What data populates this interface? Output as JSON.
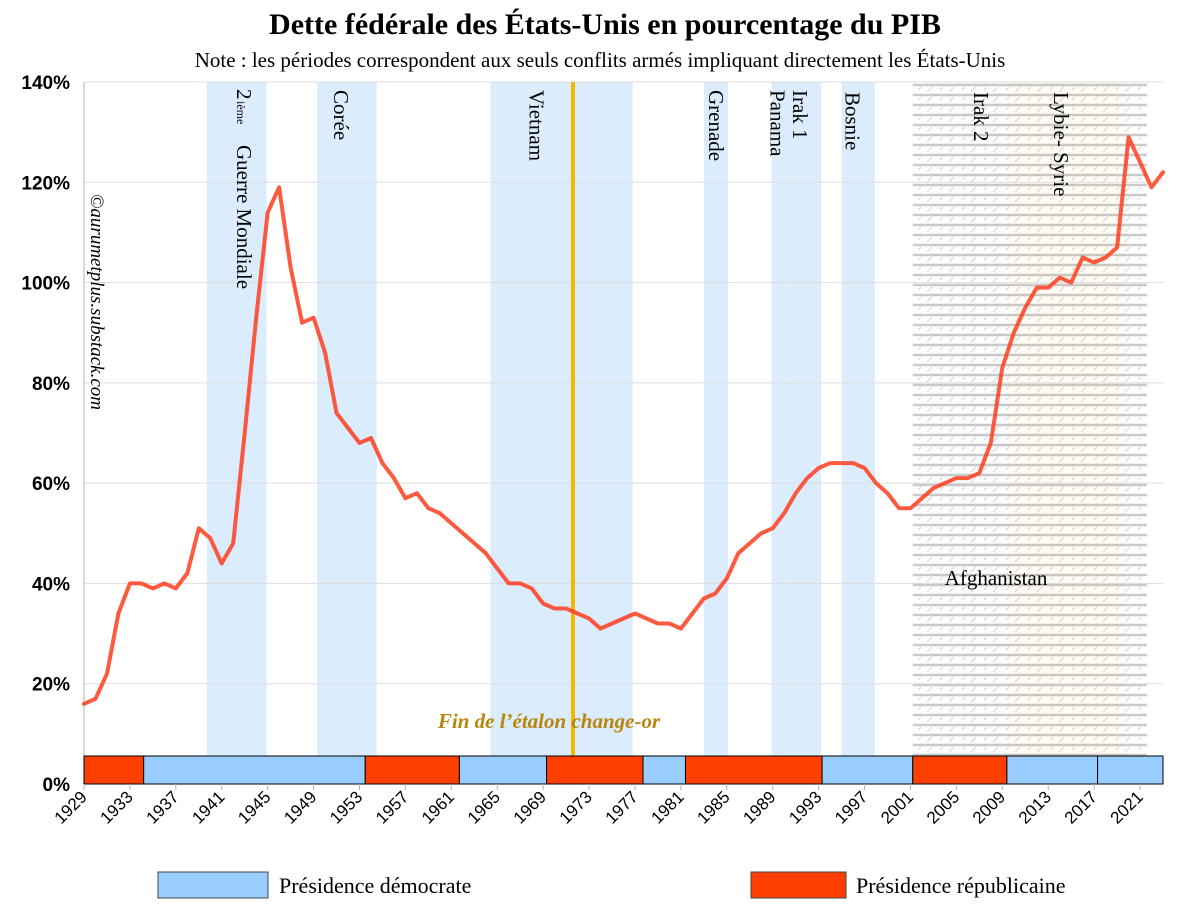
{
  "colors": {
    "debt_line": "#ff3c1e",
    "war_band": "#cfe5fb",
    "recent_band": "#fbd97a",
    "gold_line": "#f5b800",
    "democrat": "#99ccff",
    "republican": "#ff3f00",
    "grid": "#dddddd"
  },
  "chart_data": {
    "type": "line",
    "title": "Dette fédérale des États-Unis en pourcentage du PIB",
    "subtitle": "Note : les périodes correspondent aux seuls conflits armés impliquant directement les États-Unis",
    "credit": "©aurumetplus.substack.com",
    "ylim": [
      0,
      140
    ],
    "xlim": [
      1929,
      2023
    ],
    "y_ticks": [
      "0%",
      "20%",
      "40%",
      "60%",
      "80%",
      "100%",
      "120%",
      "140%"
    ],
    "x_ticks": [
      "1929",
      "1933",
      "1937",
      "1941",
      "1945",
      "1949",
      "1953",
      "1957",
      "1961",
      "1965",
      "1969",
      "1973",
      "1977",
      "1981",
      "1985",
      "1989",
      "1993",
      "1997",
      "2001",
      "2005",
      "2009",
      "2013",
      "2017",
      "2021"
    ],
    "grid": true,
    "series": [
      {
        "x": [
          1929,
          1930,
          1931,
          1932,
          1933,
          1934,
          1935,
          1936,
          1937,
          1938,
          1939,
          1940,
          1941,
          1942,
          1943,
          1944,
          1945,
          1946,
          1947,
          1948,
          1949,
          1950,
          1951,
          1952,
          1953,
          1954,
          1955,
          1956,
          1957,
          1958,
          1959,
          1960,
          1961,
          1962,
          1963,
          1964,
          1965,
          1966,
          1967,
          1968,
          1969,
          1970,
          1971,
          1972,
          1973,
          1974,
          1975,
          1976,
          1977,
          1978,
          1979,
          1980,
          1981,
          1982,
          1983,
          1984,
          1985,
          1986,
          1987,
          1988,
          1989,
          1990,
          1991,
          1992,
          1993,
          1994,
          1995,
          1996,
          1997,
          1998,
          1999,
          2000,
          2001,
          2002,
          2003,
          2004,
          2005,
          2006,
          2007,
          2008,
          2009,
          2010,
          2011,
          2012,
          2013,
          2014,
          2015,
          2016,
          2017,
          2018,
          2019,
          2020,
          2021,
          2022,
          2023
        ],
        "values": [
          16,
          17,
          22,
          34,
          40,
          40,
          39,
          40,
          39,
          42,
          51,
          49,
          44,
          48,
          70,
          93,
          114,
          119,
          103,
          92,
          93,
          86,
          74,
          71,
          68,
          69,
          64,
          61,
          57,
          58,
          55,
          54,
          52,
          50,
          48,
          46,
          43,
          40,
          40,
          39,
          36,
          35,
          35,
          34,
          33,
          31,
          32,
          33,
          34,
          33,
          32,
          32,
          31,
          34,
          37,
          38,
          41,
          46,
          48,
          50,
          51,
          54,
          58,
          61,
          63,
          64,
          64,
          64,
          63,
          60,
          58,
          55,
          55,
          57,
          59,
          60,
          61,
          61,
          62,
          68,
          83,
          90,
          95,
          99,
          99,
          101,
          100,
          105,
          104,
          105,
          107,
          129,
          124,
          119,
          122
        ]
      }
    ],
    "conflicts": [
      {
        "name": "Guerre Mondiale",
        "prefix": "2",
        "sup": "ième",
        "start": 1939.7,
        "end": 1944.9
      },
      {
        "name": "Corée",
        "start": 1949.3,
        "end": 1954.5
      },
      {
        "name": "Vietnam",
        "start": 1964.4,
        "end": 1976.8
      },
      {
        "name": "Grenade",
        "start": 1983.0,
        "end": 1985.1
      },
      {
        "name": "Panama",
        "start": 1988.9,
        "end": 1990.4
      },
      {
        "name": "Irak 1",
        "start": 1990.4,
        "end": 1993.2
      },
      {
        "name": "Bosnie",
        "start": 1995.0,
        "end": 1997.9
      },
      {
        "name": "Irak 2",
        "start": 2002.8,
        "end": 2009.5
      },
      {
        "name": "Lybie- Syrie",
        "start": 2009.5,
        "end": 2019.7
      },
      {
        "name": "Afghanistan",
        "start": 2001.2,
        "end": 2021.6
      }
    ],
    "gold_standard": {
      "label": "Fin de l’étalon change-or",
      "year": 1971.6
    },
    "presidencies": [
      {
        "party": "republican",
        "start": 1929,
        "end": 1934.2
      },
      {
        "party": "democrat",
        "start": 1934.2,
        "end": 1953.5
      },
      {
        "party": "republican",
        "start": 1953.5,
        "end": 1961.7
      },
      {
        "party": "democrat",
        "start": 1961.7,
        "end": 1969.3
      },
      {
        "party": "republican",
        "start": 1969.3,
        "end": 1977.7
      },
      {
        "party": "democrat",
        "start": 1977.7,
        "end": 1981.4
      },
      {
        "party": "republican",
        "start": 1981.4,
        "end": 1993.3
      },
      {
        "party": "democrat",
        "start": 1993.3,
        "end": 2001.2
      },
      {
        "party": "republican",
        "start": 2001.2,
        "end": 2009.4
      },
      {
        "party": "democrat",
        "start": 2009.4,
        "end": 2017.3
      },
      {
        "party": "democrat",
        "start": 2017.3,
        "end": 2023
      }
    ],
    "legend": {
      "democrat": "Présidence démocrate",
      "republican": "Présidence républicaine"
    }
  }
}
